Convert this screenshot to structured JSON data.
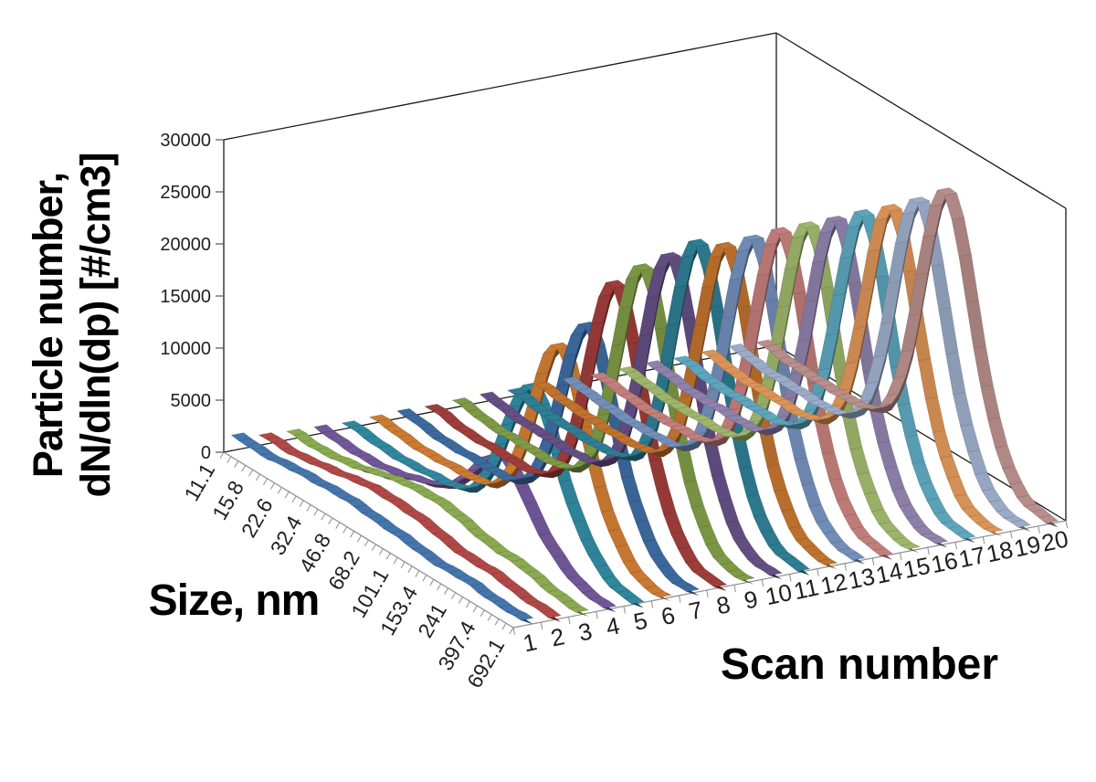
{
  "chart_data": {
    "type": "ribbon3d-line",
    "title": "",
    "y_axis": {
      "title_lines": [
        "Particle number,",
        "dN/dln(dp) [#/cm3]"
      ],
      "min": 0,
      "max": 30000,
      "step": 5000,
      "ticks": [
        "0",
        "5000",
        "10000",
        "15000",
        "20000",
        "25000",
        "30000"
      ]
    },
    "size_axis": {
      "title": "Size, nm",
      "scale": "log",
      "bins": 41,
      "label_every_bins": 4,
      "labels": [
        "11.1",
        "15.8",
        "22.6",
        "32.4",
        "46.8",
        "68.2",
        "101.1",
        "153.4",
        "241",
        "397.4",
        "692.1"
      ]
    },
    "scan_axis": {
      "title": "Scan number",
      "labels": [
        "1",
        "2",
        "3",
        "4",
        "5",
        "6",
        "7",
        "8",
        "9",
        "10",
        "11",
        "12",
        "13",
        "14",
        "15",
        "16",
        "17",
        "18",
        "19",
        "20"
      ]
    },
    "model": {
      "main_center_bin": 25.5,
      "main_sigma_bins": 3.6,
      "start_amp": 520,
      "start_sigma_bins": 2.4,
      "tail_center_bin": 32.5,
      "tail_sigma_bins": 2.2,
      "noise_amp": 110,
      "thickness_px": 7
    },
    "series": [
      {
        "scan": 1,
        "color": "#4577AE",
        "peak": 0,
        "mode2_peak": 1300,
        "mode2_center": 14,
        "mode2_sigma": 9,
        "tail_peak": 250,
        "base": 480
      },
      {
        "scan": 2,
        "color": "#B34A47",
        "peak": 0,
        "mode2_peak": 1900,
        "mode2_center": 17,
        "mode2_sigma": 8,
        "tail_peak": 400,
        "base": 300
      },
      {
        "scan": 3,
        "color": "#8CAC52",
        "peak": 0,
        "mode2_peak": 2400,
        "mode2_center": 19,
        "mode2_sigma": 7.5,
        "tail_peak": 550,
        "base": 220
      },
      {
        "scan": 4,
        "color": "#73589B",
        "peak": 7000,
        "mode2_peak": 2000,
        "mode2_center": 20,
        "mode2_sigma": 6,
        "tail_peak": 900,
        "base": 180
      },
      {
        "scan": 5,
        "color": "#3189A0",
        "peak": 14500,
        "mode2_peak": 500,
        "mode2_center": 18,
        "mode2_sigma": 5,
        "tail_peak": 1500,
        "base": 180
      },
      {
        "scan": 6,
        "color": "#CE7C33",
        "peak": 18000,
        "mode2_peak": 300,
        "mode2_center": 18,
        "mode2_sigma": 5,
        "tail_peak": 1400,
        "base": 180
      },
      {
        "scan": 7,
        "color": "#3D6BA0",
        "peak": 19600,
        "mode2_peak": 0,
        "mode2_center": 18,
        "mode2_sigma": 5,
        "tail_peak": 1400,
        "base": 180
      },
      {
        "scan": 8,
        "color": "#A03E3B",
        "peak": 23000,
        "mode2_peak": 0,
        "mode2_center": 18,
        "mode2_sigma": 5,
        "tail_peak": 1400,
        "base": 180
      },
      {
        "scan": 9,
        "color": "#7F9C47",
        "peak": 24200,
        "mode2_peak": 0,
        "mode2_center": 18,
        "mode2_sigma": 5,
        "tail_peak": 1400,
        "base": 180
      },
      {
        "scan": 10,
        "color": "#665086",
        "peak": 24800,
        "mode2_peak": 0,
        "mode2_center": 18,
        "mode2_sigma": 5,
        "tail_peak": 1400,
        "base": 180
      },
      {
        "scan": 11,
        "color": "#2F7F95",
        "peak": 25500,
        "mode2_peak": 0,
        "mode2_center": 18,
        "mode2_sigma": 5,
        "tail_peak": 1400,
        "base": 180
      },
      {
        "scan": 12,
        "color": "#C3742F",
        "peak": 24800,
        "mode2_peak": 0,
        "mode2_center": 18,
        "mode2_sigma": 5,
        "tail_peak": 1400,
        "base": 180
      },
      {
        "scan": 13,
        "color": "#7590BC",
        "peak": 25000,
        "mode2_peak": 0,
        "mode2_center": 18,
        "mode2_sigma": 5,
        "tail_peak": 1400,
        "base": 180
      },
      {
        "scan": 14,
        "color": "#C5807C",
        "peak": 25100,
        "mode2_peak": 0,
        "mode2_center": 18,
        "mode2_sigma": 5,
        "tail_peak": 1400,
        "base": 180
      },
      {
        "scan": 15,
        "color": "#9FB86C",
        "peak": 25200,
        "mode2_peak": 0,
        "mode2_center": 18,
        "mode2_sigma": 5,
        "tail_peak": 1400,
        "base": 180
      },
      {
        "scan": 16,
        "color": "#9183AE",
        "peak": 25200,
        "mode2_peak": 0,
        "mode2_center": 18,
        "mode2_sigma": 5,
        "tail_peak": 1400,
        "base": 180
      },
      {
        "scan": 17,
        "color": "#5FA8BF",
        "peak": 25200,
        "mode2_peak": 0,
        "mode2_center": 18,
        "mode2_sigma": 5,
        "tail_peak": 1400,
        "base": 180
      },
      {
        "scan": 18,
        "color": "#DE9659",
        "peak": 25300,
        "mode2_peak": 0,
        "mode2_center": 18,
        "mode2_sigma": 5,
        "tail_peak": 1400,
        "base": 180
      },
      {
        "scan": 19,
        "color": "#9DAECB",
        "peak": 25500,
        "mode2_peak": 0,
        "mode2_center": 18,
        "mode2_sigma": 5,
        "tail_peak": 1400,
        "base": 180
      },
      {
        "scan": 20,
        "color": "#BB908D",
        "peak": 25800,
        "mode2_peak": 0,
        "mode2_center": 18,
        "mode2_sigma": 5,
        "tail_peak": 1400,
        "base": 180
      }
    ],
    "layout_hints": {
      "grid": false,
      "legend": "none",
      "peak_size_nm": 130,
      "peak_value_range": [
        0,
        26000
      ]
    }
  }
}
